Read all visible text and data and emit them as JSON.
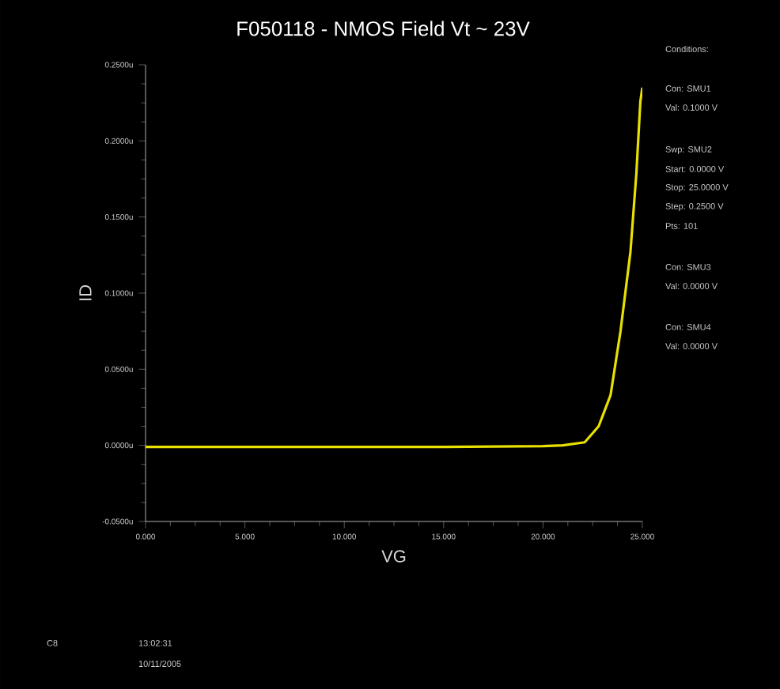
{
  "chart_data": {
    "type": "line",
    "title": "F050118 - NMOS Field Vt ~ 23V",
    "xlabel": "VG",
    "ylabel": "ID",
    "x": [
      0,
      5,
      10,
      15,
      20,
      21,
      22.1,
      22.8,
      23.4,
      23.9,
      24.4,
      24.7,
      24.9,
      25
    ],
    "series": [
      {
        "color": "#e8e000",
        "values": [
          -0.001,
          -0.001,
          -0.001,
          -0.001,
          -0.0005,
          0,
          0.002,
          0.0125,
          0.033,
          0.075,
          0.127,
          0.179,
          0.226,
          0.235
        ]
      }
    ],
    "xlim": [
      0,
      25
    ],
    "ylim": [
      -0.05,
      0.25
    ],
    "xticks": [
      {
        "value": 0,
        "label": "0.000"
      },
      {
        "value": 5,
        "label": "5.000"
      },
      {
        "value": 10,
        "label": "10.000"
      },
      {
        "value": 15,
        "label": "15.000"
      },
      {
        "value": 20,
        "label": "20.000"
      },
      {
        "value": 25,
        "label": "25.000"
      }
    ],
    "yticks": [
      {
        "value": -0.05,
        "label": "-0.0500u"
      },
      {
        "value": 0,
        "label": "0.0000u"
      },
      {
        "value": 0.05,
        "label": "0.0500u"
      },
      {
        "value": 0.1,
        "label": "0.1000u"
      },
      {
        "value": 0.15,
        "label": "0.1500u"
      },
      {
        "value": 0.2,
        "label": "0.2000u"
      },
      {
        "value": 0.25,
        "label": "0.2500u"
      }
    ],
    "grid": false,
    "marker": "none",
    "line_style": "solid",
    "annotations": [
      "Conditions:",
      "Con: SMU1",
      "Val: 0.1000 V",
      "Swp: SMU2",
      "Start: 0.0000 V",
      "Stop: 25.0000 V",
      "Step: 0.2500 V",
      "Pts: 101",
      "Con: SMU3",
      "Val: 0.0000 V",
      "Con: SMU4",
      "Val: 0.0000 V",
      "C8",
      "13:02:31",
      "10/11/2005"
    ]
  }
}
